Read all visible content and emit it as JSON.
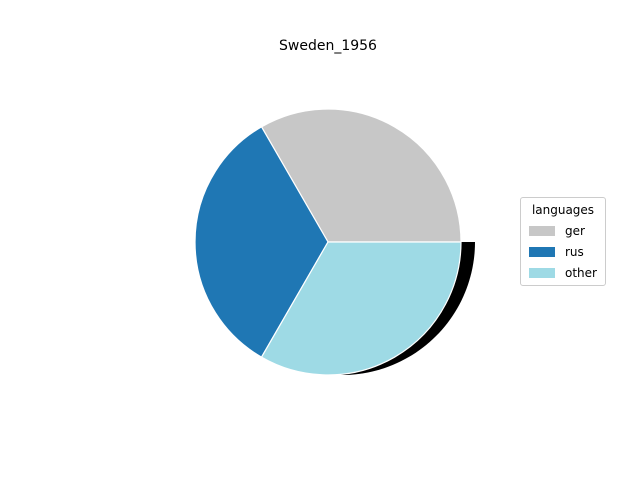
{
  "chart_data": {
    "type": "pie",
    "title": "Sweden_1956",
    "labels": [
      "ger",
      "rus",
      "other"
    ],
    "values": [
      33.3,
      33.3,
      33.3
    ],
    "colors": [
      "#c7c7c7",
      "#1f77b4",
      "#9edae5"
    ],
    "start_angle_deg": 0,
    "direction": "counterclockwise",
    "shadowed_slice": "other",
    "shadow_color": "#000000",
    "legend": {
      "title": "languages",
      "placement": "right",
      "entries": [
        "ger",
        "rus",
        "other"
      ]
    }
  }
}
